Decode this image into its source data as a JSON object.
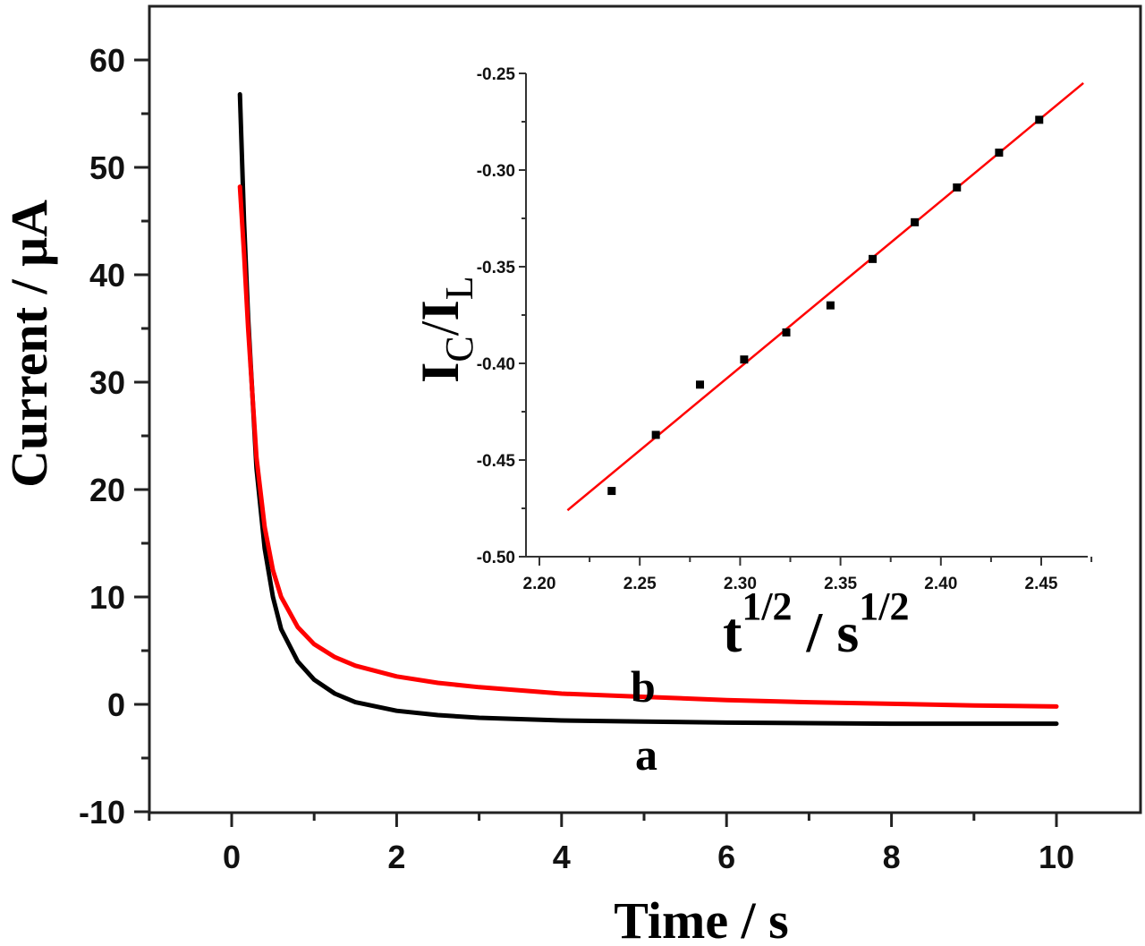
{
  "chart_data": [
    {
      "id": "main",
      "type": "line",
      "title": "",
      "xlabel": "Time / s",
      "ylabel": "Current / μA",
      "xlim": [
        -1,
        11
      ],
      "ylim": [
        -10,
        65
      ],
      "x_ticks": [
        0,
        2,
        4,
        6,
        8,
        10
      ],
      "y_ticks": [
        -10,
        0,
        10,
        20,
        30,
        40,
        50,
        60
      ],
      "x_tick_labels": [
        "0",
        "2",
        "4",
        "6",
        "8",
        "10"
      ],
      "y_tick_labels": [
        "-10",
        "0",
        "10",
        "20",
        "30",
        "40",
        "50",
        "60"
      ],
      "grid": false,
      "legend": "curve labels placed inline",
      "series": [
        {
          "name": "a",
          "color": "#000000",
          "x": [
            0.1,
            0.15,
            0.2,
            0.3,
            0.4,
            0.5,
            0.6,
            0.8,
            1.0,
            1.25,
            1.5,
            2.0,
            2.5,
            3.0,
            4.0,
            5.0,
            6.0,
            7.0,
            8.0,
            9.0,
            10.0
          ],
          "values": [
            56.8,
            45.0,
            36.0,
            22.0,
            14.5,
            10.0,
            7.0,
            4.0,
            2.3,
            1.0,
            0.2,
            -0.6,
            -1.0,
            -1.25,
            -1.5,
            -1.6,
            -1.7,
            -1.75,
            -1.8,
            -1.8,
            -1.8
          ]
        },
        {
          "name": "b",
          "color": "#ff0000",
          "x": [
            0.1,
            0.15,
            0.2,
            0.3,
            0.4,
            0.5,
            0.6,
            0.8,
            1.0,
            1.25,
            1.5,
            2.0,
            2.5,
            3.0,
            4.0,
            5.0,
            6.0,
            7.0,
            8.0,
            9.0,
            10.0
          ],
          "values": [
            48.2,
            42.0,
            35.0,
            23.0,
            16.5,
            12.5,
            10.0,
            7.2,
            5.6,
            4.4,
            3.6,
            2.6,
            2.0,
            1.6,
            1.0,
            0.7,
            0.4,
            0.2,
            0.05,
            -0.1,
            -0.2
          ]
        }
      ],
      "annotations": [
        {
          "text": "a",
          "x": 5.1,
          "y": -5.2
        },
        {
          "text": "b",
          "x": 5.1,
          "y": 1.8
        }
      ]
    },
    {
      "id": "inset",
      "type": "scatter",
      "title": "",
      "xlabel": "t^1/2 / s^1/2",
      "ylabel": "I_C/I_L",
      "xlim": [
        2.195,
        2.475
      ],
      "ylim": [
        -0.5,
        -0.25
      ],
      "x_ticks": [
        2.2,
        2.25,
        2.3,
        2.35,
        2.4,
        2.45
      ],
      "y_ticks": [
        -0.5,
        -0.45,
        -0.4,
        -0.35,
        -0.3,
        -0.25
      ],
      "x_tick_labels": [
        "2.20",
        "2.25",
        "2.30",
        "2.35",
        "2.40",
        "2.45"
      ],
      "y_tick_labels": [
        "-0.50",
        "-0.45",
        "-0.40",
        "-0.35",
        "-0.30",
        "-0.25"
      ],
      "grid": false,
      "series": [
        {
          "name": "data",
          "marker": "square",
          "color": "#000000",
          "x": [
            2.236,
            2.258,
            2.28,
            2.302,
            2.323,
            2.345,
            2.366,
            2.387,
            2.408,
            2.429,
            2.449
          ],
          "values": [
            -0.466,
            -0.437,
            -0.411,
            -0.398,
            -0.384,
            -0.37,
            -0.346,
            -0.327,
            -0.309,
            -0.291,
            -0.274
          ]
        },
        {
          "name": "linear fit",
          "color": "#ff0000",
          "x": [
            2.214,
            2.471
          ],
          "values": [
            -0.476,
            -0.255
          ]
        }
      ]
    }
  ],
  "labels": {
    "main_xlabel": "Time / s",
    "main_ylabel": "Current / μA",
    "curve_a": "a",
    "curve_b": "b",
    "inset_ylabel_I1": "I",
    "inset_ylabel_sub1": "C",
    "inset_ylabel_slash": "/",
    "inset_ylabel_I2": "I",
    "inset_ylabel_sub2": "L",
    "inset_xlabel_t": "t",
    "inset_xlabel_sup1": "1/2",
    "inset_xlabel_mid": " / s",
    "inset_xlabel_sup2": "1/2"
  }
}
